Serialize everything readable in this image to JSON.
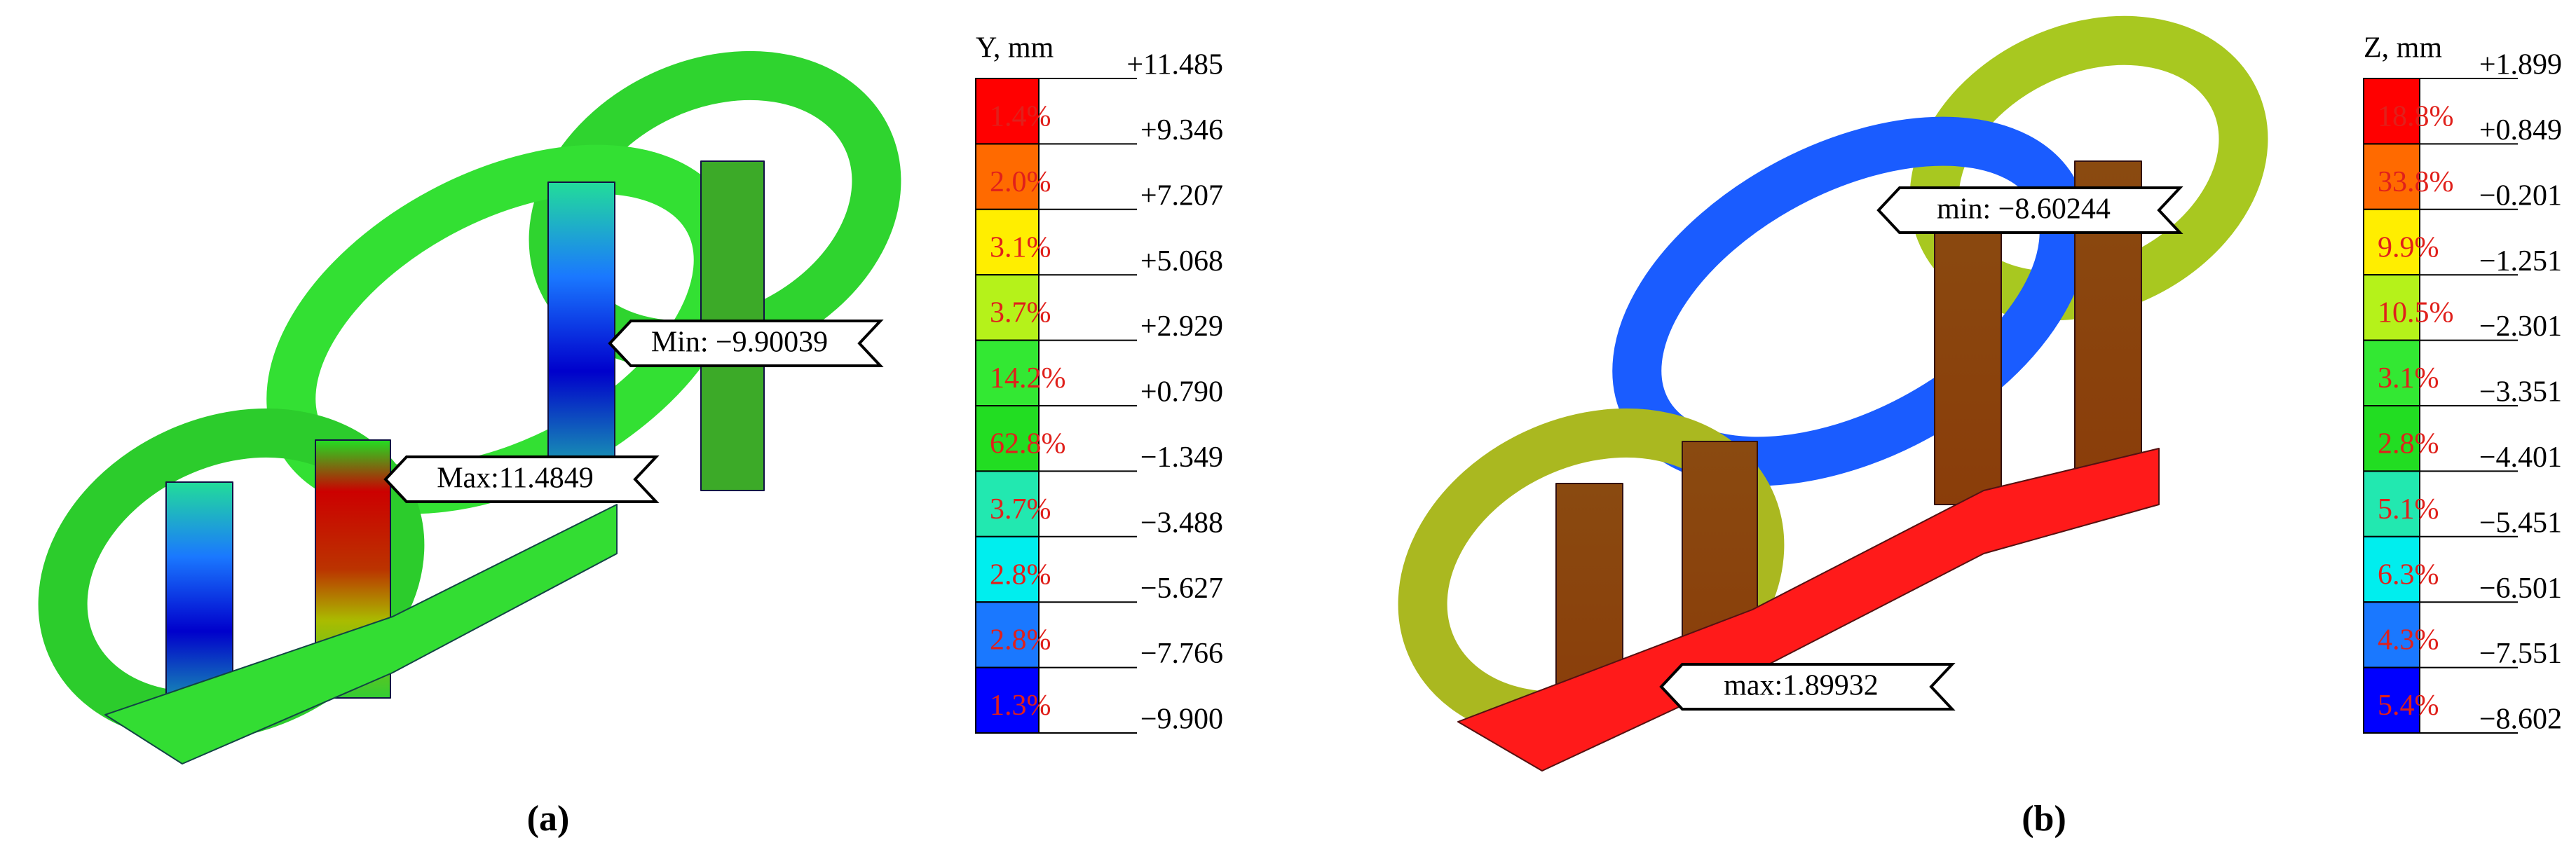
{
  "panels": [
    {
      "caption": "(a)",
      "legend": {
        "title": "Y, mm",
        "levels": [
          "+11.485",
          "+9.346",
          "+7.207",
          "+5.068",
          "+2.929",
          "+0.790",
          "−1.349",
          "−3.488",
          "−5.627",
          "−7.766",
          "−9.900"
        ],
        "percents": [
          "1.4%",
          "2.0%",
          "3.1%",
          "3.7%",
          "14.2%",
          "62.8%",
          "3.7%",
          "2.8%",
          "2.8%",
          "1.3%"
        ],
        "colors": [
          "#ff0000",
          "#ff6a00",
          "#ffee00",
          "#b5f21a",
          "#33e833",
          "#22dd22",
          "#22e8b0",
          "#00eeee",
          "#1a78ff",
          "#0000ff"
        ]
      },
      "callouts": [
        "Min: −9.90039",
        "Max:11.4849"
      ]
    },
    {
      "caption": "(b)",
      "legend": {
        "title": "Z, mm",
        "levels": [
          "+1.899",
          "+0.849",
          "−0.201",
          "−1.251",
          "−2.301",
          "−3.351",
          "−4.401",
          "−5.451",
          "−6.501",
          "−7.551",
          "−8.602"
        ],
        "percents": [
          "18.8%",
          "33.8%",
          "9.9%",
          "10.5%",
          "3.1%",
          "2.8%",
          "5.1%",
          "6.3%",
          "4.3%",
          "5.4%"
        ],
        "colors": [
          "#ff0000",
          "#ff6a00",
          "#ffee00",
          "#b5f21a",
          "#33e833",
          "#22dd22",
          "#22e8b0",
          "#00eeee",
          "#1a78ff",
          "#0000ff"
        ]
      },
      "callouts": [
        "min: −8.60244",
        "max:1.89932"
      ]
    }
  ]
}
